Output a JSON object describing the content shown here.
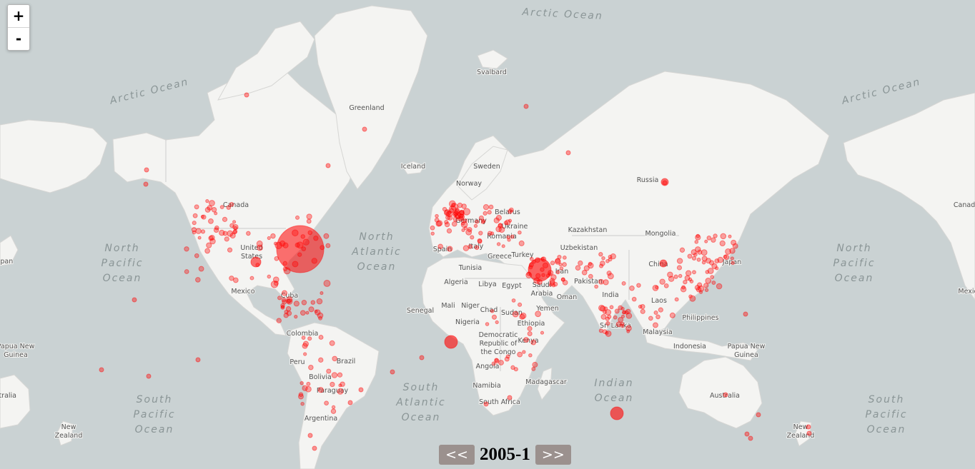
{
  "zoom": {
    "in_label": "+",
    "out_label": "-"
  },
  "timeline": {
    "prev_label": "<<",
    "current_period": "2005-1",
    "next_label": ">>"
  },
  "colors": {
    "ocean": "#cad2d3",
    "land": "#f4f4f2",
    "marker": "#ff0000"
  },
  "ocean_labels": [
    {
      "lines": [
        "Arctic Ocean"
      ],
      "pos": "top-center"
    },
    {
      "lines": [
        "Arctic Ocean"
      ],
      "pos": "top-left"
    },
    {
      "lines": [
        "Arctic Ocean"
      ],
      "pos": "top-right"
    },
    {
      "lines": [
        "North",
        "Pacific",
        "Ocean"
      ],
      "pos": "left"
    },
    {
      "lines": [
        "North",
        "Atlantic",
        "Ocean"
      ],
      "pos": "center"
    },
    {
      "lines": [
        "North",
        "Pacific",
        "Ocean"
      ],
      "pos": "right"
    },
    {
      "lines": [
        "South",
        "Pacific",
        "Ocean"
      ],
      "pos": "bottom-left"
    },
    {
      "lines": [
        "South",
        "Atlantic",
        "Ocean"
      ],
      "pos": "bottom-center"
    },
    {
      "lines": [
        "Indian",
        "Ocean"
      ],
      "pos": "bottom-center-right"
    },
    {
      "lines": [
        "South",
        "Pacific",
        "Ocean"
      ],
      "pos": "bottom-right"
    }
  ],
  "places": [
    "Svalbard",
    "Greenland",
    "Iceland",
    "Sweden",
    "Norway",
    "Russia",
    "Canada",
    "Belarus",
    "Germany",
    "Ukraine",
    "Kazakhstan",
    "Romania",
    "Mongolia",
    "Italy",
    "Spain",
    "Greece",
    "Turkey",
    "Uzbekistan",
    "United States",
    "Tunisia",
    "Iran",
    "China",
    "Japan",
    "Mexico",
    "Algeria",
    "Libya",
    "Egypt",
    "Saudi Arabia",
    "Pakistan",
    "Oman",
    "Cuba",
    "India",
    "Laos",
    "Mali",
    "Niger",
    "Senegal",
    "Chad",
    "Sudan",
    "Yemen",
    "Philippines",
    "Nigeria",
    "Ethiopia",
    "Sri Lanka",
    "Colombia",
    "Malaysia",
    "Democratic Republic of the Congo",
    "Kenya",
    "Indonesia",
    "Papua New Guinea",
    "Papua New Guinea",
    "Peru",
    "Brazil",
    "Bolivia",
    "Angola",
    "Paraguay",
    "Namibia",
    "Madagascar",
    "Australia",
    "South Africa",
    "Argentina",
    "New Zealand",
    "New Zealand",
    "Canada",
    "Japan",
    "Mexico",
    "Australia"
  ]
}
